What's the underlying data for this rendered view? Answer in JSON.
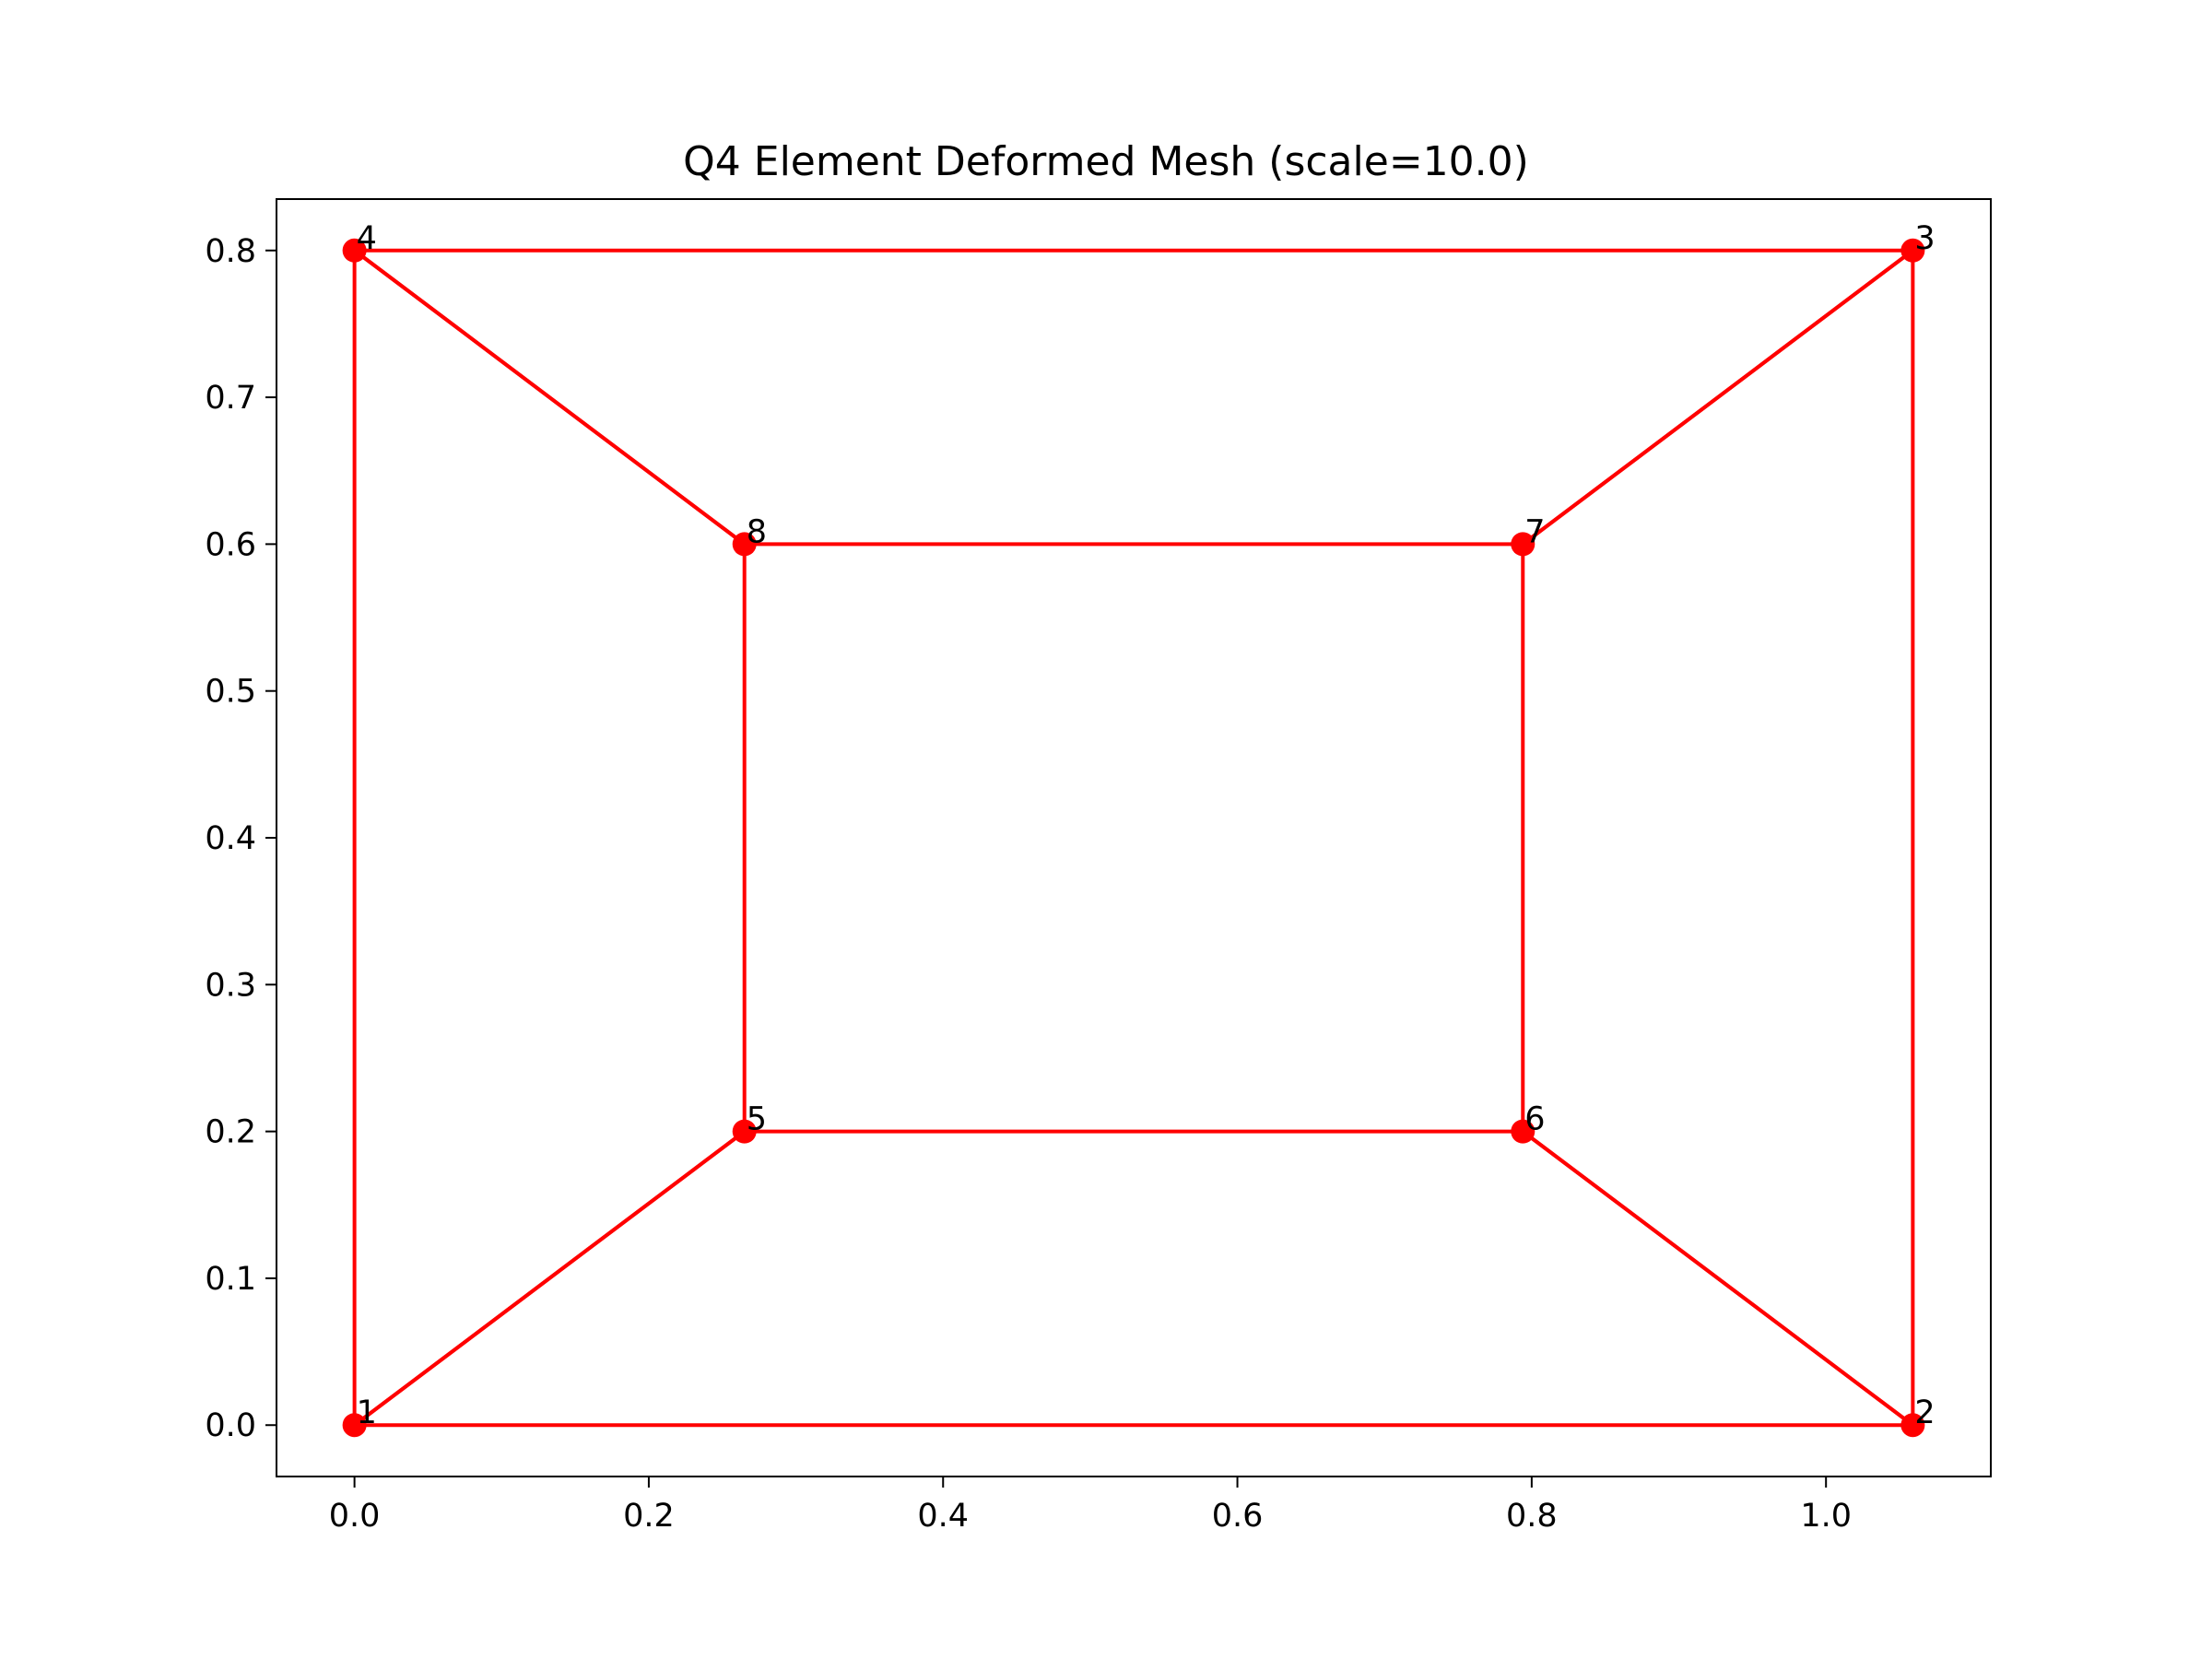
{
  "chart_data": {
    "type": "line",
    "title": "Q4 Element Deformed Mesh (scale=10.0)",
    "xlabel": "",
    "ylabel": "",
    "xlim": [
      -0.053,
      1.112
    ],
    "ylim": [
      -0.035,
      0.835
    ],
    "xticks": [
      0.0,
      0.2,
      0.4,
      0.6,
      0.8,
      1.0
    ],
    "yticks": [
      0.0,
      0.1,
      0.2,
      0.3,
      0.4,
      0.5,
      0.6,
      0.7,
      0.8
    ],
    "xtick_labels": [
      "0.0",
      "0.2",
      "0.4",
      "0.6",
      "0.8",
      "1.0"
    ],
    "ytick_labels": [
      "0.0",
      "0.1",
      "0.2",
      "0.3",
      "0.4",
      "0.5",
      "0.6",
      "0.7",
      "0.8"
    ],
    "grid": false,
    "color": "#ff0000",
    "nodes": [
      {
        "id": "1",
        "x": 0.0,
        "y": 0.0
      },
      {
        "id": "2",
        "x": 1.059,
        "y": 0.0
      },
      {
        "id": "3",
        "x": 1.059,
        "y": 0.8
      },
      {
        "id": "4",
        "x": 0.0,
        "y": 0.8
      },
      {
        "id": "5",
        "x": 0.265,
        "y": 0.2
      },
      {
        "id": "6",
        "x": 0.794,
        "y": 0.2
      },
      {
        "id": "7",
        "x": 0.794,
        "y": 0.6
      },
      {
        "id": "8",
        "x": 0.265,
        "y": 0.6
      }
    ],
    "elements": [
      [
        "1",
        "2",
        "6",
        "5"
      ],
      [
        "2",
        "3",
        "7",
        "6"
      ],
      [
        "3",
        "4",
        "8",
        "7"
      ],
      [
        "4",
        "1",
        "5",
        "8"
      ]
    ]
  }
}
